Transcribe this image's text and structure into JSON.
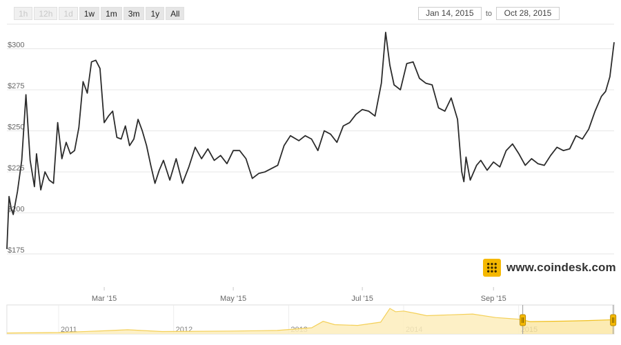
{
  "toolbar": {
    "zoom_buttons": [
      {
        "label": "1h",
        "enabled": false
      },
      {
        "label": "12h",
        "enabled": false
      },
      {
        "label": "1d",
        "enabled": false
      },
      {
        "label": "1w",
        "enabled": true
      },
      {
        "label": "1m",
        "enabled": true
      },
      {
        "label": "3m",
        "enabled": true
      },
      {
        "label": "1y",
        "enabled": true
      },
      {
        "label": "All",
        "enabled": true
      }
    ],
    "range_from": "Jan 14, 2015",
    "range_to_label": "to",
    "range_to": "Oct 28, 2015"
  },
  "branding": {
    "site": "www.coindesk.com",
    "logo_icon": "coindesk-logo-icon",
    "accent": "#f5b800"
  },
  "colors": {
    "line": "#2b2b2b",
    "grid": "#e6e6e6",
    "navigator_fill": "#fbe7a6",
    "navigator_line": "#f0c020"
  },
  "chart_data": [
    {
      "type": "line",
      "title": "",
      "xlabel": "",
      "ylabel": "",
      "x_range": [
        "2015-01-14",
        "2015-10-28"
      ],
      "ylim": [
        175,
        315
      ],
      "y_ticks": [
        175,
        200,
        225,
        250,
        275,
        300
      ],
      "y_tick_labels": [
        "$175",
        "$200",
        "$225",
        "$250",
        "$275",
        "$300"
      ],
      "x_ticks": [
        "2015-03-01",
        "2015-05-01",
        "2015-07-01",
        "2015-09-01"
      ],
      "x_tick_labels": [
        "Mar '15",
        "May '15",
        "Jul '15",
        "Sep '15"
      ],
      "grid": true,
      "series": [
        {
          "x": [
            "2015-01-14",
            "2015-01-15",
            "2015-01-16",
            "2015-01-17",
            "2015-01-19",
            "2015-01-21",
            "2015-01-23",
            "2015-01-25",
            "2015-01-27",
            "2015-01-28",
            "2015-01-30",
            "2015-02-01",
            "2015-02-03",
            "2015-02-05",
            "2015-02-07",
            "2015-02-09",
            "2015-02-11",
            "2015-02-13",
            "2015-02-15",
            "2015-02-17",
            "2015-02-19",
            "2015-02-21",
            "2015-02-23",
            "2015-02-25",
            "2015-02-27",
            "2015-03-01",
            "2015-03-03",
            "2015-03-05",
            "2015-03-07",
            "2015-03-09",
            "2015-03-11",
            "2015-03-13",
            "2015-03-15",
            "2015-03-17",
            "2015-03-19",
            "2015-03-21",
            "2015-03-23",
            "2015-03-25",
            "2015-03-27",
            "2015-03-29",
            "2015-04-01",
            "2015-04-04",
            "2015-04-07",
            "2015-04-10",
            "2015-04-13",
            "2015-04-16",
            "2015-04-19",
            "2015-04-22",
            "2015-04-25",
            "2015-04-28",
            "2015-05-01",
            "2015-05-04",
            "2015-05-07",
            "2015-05-10",
            "2015-05-13",
            "2015-05-16",
            "2015-05-19",
            "2015-05-22",
            "2015-05-25",
            "2015-05-28",
            "2015-06-01",
            "2015-06-04",
            "2015-06-07",
            "2015-06-10",
            "2015-06-13",
            "2015-06-16",
            "2015-06-19",
            "2015-06-22",
            "2015-06-25",
            "2015-06-28",
            "2015-07-01",
            "2015-07-04",
            "2015-07-07",
            "2015-07-10",
            "2015-07-12",
            "2015-07-14",
            "2015-07-16",
            "2015-07-19",
            "2015-07-22",
            "2015-07-25",
            "2015-07-28",
            "2015-07-31",
            "2015-08-03",
            "2015-08-06",
            "2015-08-09",
            "2015-08-12",
            "2015-08-15",
            "2015-08-17",
            "2015-08-18",
            "2015-08-19",
            "2015-08-21",
            "2015-08-24",
            "2015-08-26",
            "2015-08-29",
            "2015-09-01",
            "2015-09-04",
            "2015-09-07",
            "2015-09-10",
            "2015-09-13",
            "2015-09-16",
            "2015-09-19",
            "2015-09-22",
            "2015-09-25",
            "2015-09-28",
            "2015-10-01",
            "2015-10-04",
            "2015-10-07",
            "2015-10-10",
            "2015-10-13",
            "2015-10-16",
            "2015-10-19",
            "2015-10-22",
            "2015-10-24",
            "2015-10-26",
            "2015-10-28"
          ],
          "values": [
            178,
            210,
            203,
            199,
            213,
            232,
            272,
            232,
            216,
            236,
            214,
            225,
            220,
            218,
            255,
            233,
            243,
            236,
            238,
            252,
            280,
            273,
            292,
            293,
            288,
            255,
            259,
            262,
            246,
            245,
            253,
            241,
            245,
            257,
            250,
            241,
            229,
            218,
            226,
            232,
            220,
            233,
            218,
            228,
            240,
            233,
            239,
            232,
            235,
            230,
            238,
            238,
            233,
            221,
            224,
            225,
            227,
            229,
            241,
            247,
            244,
            247,
            245,
            238,
            250,
            248,
            243,
            253,
            255,
            260,
            263,
            262,
            259,
            279,
            310,
            290,
            278,
            275,
            291,
            292,
            282,
            279,
            278,
            264,
            262,
            270,
            257,
            225,
            219,
            234,
            220,
            229,
            232,
            226,
            231,
            228,
            238,
            242,
            236,
            229,
            233,
            230,
            229,
            235,
            240,
            238,
            239,
            247,
            245,
            251,
            262,
            271,
            274,
            283,
            304
          ]
        }
      ]
    },
    {
      "type": "area",
      "title": "",
      "x_tick_labels": [
        "2011",
        "2012",
        "2013",
        "2014",
        "2015"
      ],
      "x_ticks": [
        2011,
        2012,
        2013,
        2014,
        2015
      ],
      "x_range": [
        2010.55,
        2015.83
      ],
      "selected_range": [
        "2015-01-14",
        "2015-10-28"
      ],
      "series": [
        {
          "x": [
            2010.55,
            2011.0,
            2011.4,
            2011.6,
            2011.9,
            2012.5,
            2012.9,
            2013.2,
            2013.3,
            2013.4,
            2013.6,
            2013.8,
            2013.88,
            2013.93,
            2014.0,
            2014.1,
            2014.2,
            2014.4,
            2014.6,
            2014.8,
            2015.0,
            2015.1,
            2015.4,
            2015.6,
            2015.83
          ],
          "values": [
            0.1,
            1,
            10,
            20,
            5,
            8,
            13,
            50,
            230,
            120,
            100,
            200,
            1000,
            750,
            800,
            650,
            500,
            550,
            600,
            400,
            320,
            220,
            240,
            260,
            300
          ]
        }
      ]
    }
  ]
}
